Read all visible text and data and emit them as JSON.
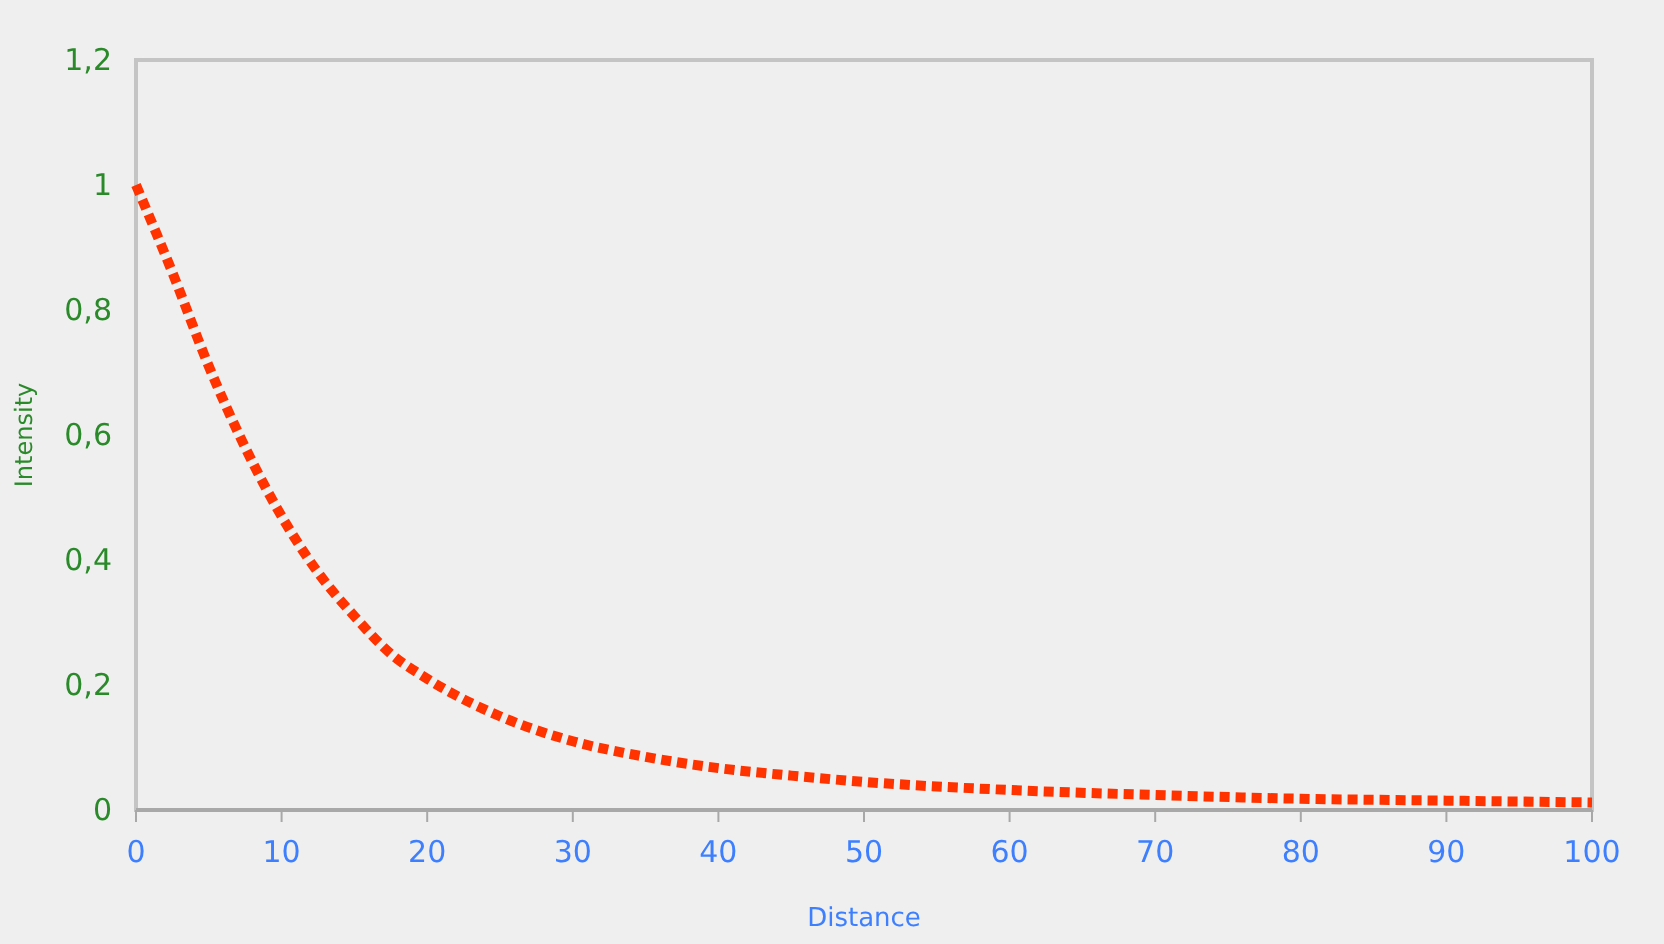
{
  "chart_data": {
    "type": "line",
    "xlabel": "Distance",
    "ylabel": "Intensity",
    "x": [
      0,
      2.5,
      5,
      7.5,
      10,
      12.5,
      15,
      17.5,
      20,
      25,
      30,
      35,
      40,
      45,
      50,
      60,
      70,
      80,
      90,
      100
    ],
    "series": [
      {
        "color": "#ff3300",
        "values": [
          1,
          0.86,
          0.71,
          0.58,
          0.47,
          0.38,
          0.31,
          0.25,
          0.21,
          0.15,
          0.11,
          0.085,
          0.067,
          0.055,
          0.045,
          0.032,
          0.024,
          0.018,
          0.015,
          0.012
        ]
      }
    ],
    "xlim": [
      0,
      100
    ],
    "xticks": [
      0,
      10,
      20,
      30,
      40,
      50,
      60,
      70,
      80,
      90,
      100
    ],
    "ylim": [
      0,
      1.2
    ],
    "yticks": [
      0,
      {
        "value": 0.2,
        "label": "0,2"
      },
      {
        "value": 0.4,
        "label": "0,4"
      },
      {
        "value": 0.6,
        "label": "0,6"
      },
      {
        "value": 0.8,
        "label": "0,8"
      },
      1,
      {
        "value": 1.2,
        "label": "1,2"
      }
    ],
    "line_style": "dotted"
  }
}
